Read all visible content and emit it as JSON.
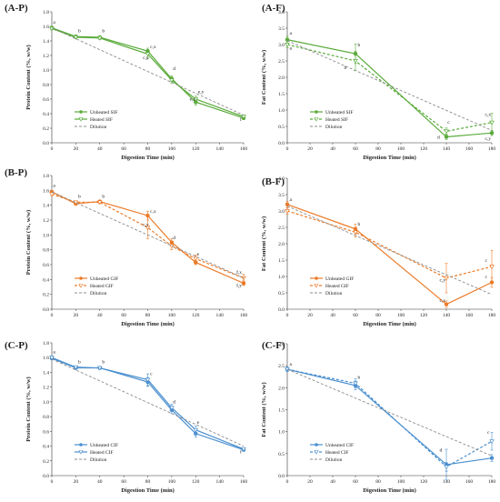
{
  "chart_data": [
    {
      "id": "A-P",
      "panel_label": "(A-P)",
      "type": "line",
      "xlabel": "Digestion Time (min)",
      "ylabel": "Protein Content (%, w/w)",
      "xlim": [
        0,
        160
      ],
      "ylim": [
        0,
        1.8
      ],
      "xticks": [
        0,
        20,
        40,
        60,
        80,
        100,
        120,
        140,
        160
      ],
      "yticks": [
        "0.0",
        "0.2",
        "0.4",
        "0.6",
        "0.8",
        "1.0",
        "1.2",
        "1.4",
        "1.6",
        "1.8"
      ],
      "color": "#5aab3b",
      "legend_position": "bottom-left",
      "grid": false,
      "series": [
        {
          "name": "Unheated SIF",
          "style": "solid",
          "marker": "filled",
          "x": [
            0,
            20,
            40,
            80,
            100,
            120,
            160
          ],
          "y": [
            1.58,
            1.46,
            1.45,
            1.26,
            0.88,
            0.56,
            0.34
          ],
          "err": [
            0.02,
            0.02,
            0.02,
            0.04,
            0.04,
            0.04,
            0.02
          ]
        },
        {
          "name": "Heated SIF",
          "style": "solid",
          "marker": "open",
          "x": [
            0,
            20,
            40,
            80,
            100,
            120,
            160
          ],
          "y": [
            1.57,
            1.45,
            1.44,
            1.22,
            0.86,
            0.6,
            0.36
          ],
          "err": [
            0.02,
            0.02,
            0.02,
            0.06,
            0.04,
            0.04,
            0.02
          ]
        },
        {
          "name": "Dilution",
          "style": "dashed",
          "marker": "none",
          "x": [
            0,
            160
          ],
          "y": [
            1.58,
            0.38
          ],
          "err": []
        }
      ],
      "annotations": [
        {
          "text": "a",
          "x": 1,
          "y": 1.64
        },
        {
          "text": "b",
          "x": 22,
          "y": 1.52
        },
        {
          "text": "b",
          "x": 42,
          "y": 1.52
        },
        {
          "text": "c,x",
          "x": 82,
          "y": 1.3
        },
        {
          "text": "c,y",
          "x": 76,
          "y": 1.15
        },
        {
          "text": "d",
          "x": 101,
          "y": 1.0
        },
        {
          "text": "e,y",
          "x": 122,
          "y": 0.68
        },
        {
          "text": "e,x",
          "x": 115,
          "y": 0.58
        },
        {
          "text": "f",
          "x": 157,
          "y": 0.3
        }
      ]
    },
    {
      "id": "A-F",
      "panel_label": "(A-F)",
      "type": "line",
      "xlabel": "Digestion Time (min)",
      "ylabel": "Fat Content (%, w/w)",
      "xlim": [
        0,
        180
      ],
      "ylim": [
        0,
        4.0
      ],
      "xticks": [
        0,
        20,
        40,
        60,
        80,
        100,
        120,
        140,
        160,
        180
      ],
      "yticks": [
        "0.0",
        "0.5",
        "1.0",
        "1.5",
        "2.0",
        "2.5",
        "3.0",
        "3.5",
        "4.0"
      ],
      "color": "#5aab3b",
      "legend_position": "bottom-left",
      "grid": false,
      "series": [
        {
          "name": "Unheated SIF",
          "style": "solid",
          "marker": "filled",
          "x": [
            0,
            60,
            140,
            180
          ],
          "y": [
            3.15,
            2.72,
            0.18,
            0.3
          ],
          "err": [
            0.1,
            0.3,
            0.08,
            0.08
          ]
        },
        {
          "name": "Heated SIF",
          "style": "dashed",
          "marker": "open",
          "x": [
            0,
            60,
            140,
            180
          ],
          "y": [
            3.0,
            2.5,
            0.35,
            0.62
          ],
          "err": [
            0.1,
            0.3,
            0.1,
            0.28
          ]
        },
        {
          "name": "Dilution",
          "style": "dashed",
          "marker": "none",
          "x": [
            0,
            180
          ],
          "y": [
            3.12,
            0.38
          ],
          "err": []
        }
      ],
      "annotations": [
        {
          "text": "a",
          "x": 2,
          "y": 3.3
        },
        {
          "text": "a",
          "x": 2,
          "y": 2.85
        },
        {
          "text": "b",
          "x": 62,
          "y": 2.95
        },
        {
          "text": "b",
          "x": 50,
          "y": 2.25
        },
        {
          "text": "c",
          "x": 141,
          "y": 0.58
        },
        {
          "text": "d",
          "x": 132,
          "y": 0.12
        },
        {
          "text": "c,x",
          "x": 174,
          "y": 0.82
        },
        {
          "text": "c,y",
          "x": 174,
          "y": 0.08
        }
      ]
    },
    {
      "id": "B-P",
      "panel_label": "(B-P)",
      "type": "line",
      "xlabel": "Digestion Time (min)",
      "ylabel": "Protein Content (%, w/w)",
      "xlim": [
        0,
        160
      ],
      "ylim": [
        0,
        1.8
      ],
      "xticks": [
        0,
        20,
        40,
        60,
        80,
        100,
        120,
        140,
        160
      ],
      "yticks": [
        "0.0",
        "0.2",
        "0.4",
        "0.6",
        "0.8",
        "1.0",
        "1.2",
        "1.4",
        "1.6",
        "1.8"
      ],
      "color": "#ec7b29",
      "legend_position": "bottom-left",
      "grid": false,
      "series": [
        {
          "name": "Unheated GIF",
          "style": "solid",
          "marker": "filled",
          "x": [
            0,
            20,
            40,
            80,
            100,
            120,
            160
          ],
          "y": [
            1.58,
            1.42,
            1.45,
            1.26,
            0.9,
            0.63,
            0.35
          ],
          "err": [
            0.02,
            0.02,
            0.02,
            0.06,
            0.05,
            0.03,
            0.03
          ]
        },
        {
          "name": "Heated GIF",
          "style": "dashed",
          "marker": "open",
          "x": [
            0,
            20,
            40,
            80,
            100,
            120,
            160
          ],
          "y": [
            1.55,
            1.44,
            1.44,
            1.1,
            0.85,
            0.68,
            0.42
          ],
          "err": [
            0.02,
            0.02,
            0.02,
            0.15,
            0.05,
            0.05,
            0.05
          ]
        },
        {
          "name": "Dilution",
          "style": "dashed",
          "marker": "none",
          "x": [
            0,
            160
          ],
          "y": [
            1.58,
            0.42
          ],
          "err": []
        }
      ],
      "annotations": [
        {
          "text": "a",
          "x": 1,
          "y": 1.65
        },
        {
          "text": "b",
          "x": 22,
          "y": 1.5
        },
        {
          "text": "b",
          "x": 42,
          "y": 1.5
        },
        {
          "text": "c,x",
          "x": 82,
          "y": 1.3
        },
        {
          "text": "c,y",
          "x": 76,
          "y": 1.12
        },
        {
          "text": "d",
          "x": 101,
          "y": 0.94
        },
        {
          "text": "e",
          "x": 121,
          "y": 0.72
        },
        {
          "text": "f,x",
          "x": 154,
          "y": 0.48
        },
        {
          "text": "f,y",
          "x": 154,
          "y": 0.3
        }
      ]
    },
    {
      "id": "B-F",
      "panel_label": "(B-F)",
      "type": "line",
      "xlabel": "Digestion Time (min)",
      "ylabel": "Fat Content (%, w/w)",
      "xlim": [
        0,
        180
      ],
      "ylim": [
        0,
        4.0
      ],
      "xticks": [
        0,
        20,
        40,
        60,
        80,
        100,
        120,
        140,
        160,
        180
      ],
      "yticks": [
        "0.0",
        "0.5",
        "1.0",
        "1.5",
        "2.0",
        "2.5",
        "3.0",
        "3.5",
        "4.0"
      ],
      "color": "#ec7b29",
      "legend_position": "bottom-left",
      "grid": false,
      "series": [
        {
          "name": "Unheated GIF",
          "style": "solid",
          "marker": "filled",
          "x": [
            0,
            60,
            140,
            180
          ],
          "y": [
            3.2,
            2.45,
            0.15,
            0.82
          ],
          "err": [
            0.1,
            0.15,
            0.1,
            0.15
          ]
        },
        {
          "name": "Heated GIF",
          "style": "dashed",
          "marker": "open",
          "x": [
            0,
            60,
            140,
            180
          ],
          "y": [
            3.0,
            2.35,
            0.95,
            1.3
          ],
          "err": [
            0.1,
            0.15,
            0.45,
            0.5
          ]
        },
        {
          "name": "Dilution",
          "style": "dashed",
          "marker": "none",
          "x": [
            0,
            180
          ],
          "y": [
            3.15,
            0.45
          ],
          "err": []
        }
      ],
      "annotations": [
        {
          "text": "a",
          "x": 2,
          "y": 3.3
        },
        {
          "text": "b",
          "x": 62,
          "y": 2.55
        },
        {
          "text": "c,y",
          "x": 134,
          "y": 0.85
        },
        {
          "text": "c,x",
          "x": 134,
          "y": 0.22
        },
        {
          "text": "c",
          "x": 174,
          "y": 1.45
        },
        {
          "text": "c",
          "x": 174,
          "y": 0.95
        }
      ]
    },
    {
      "id": "C-P",
      "panel_label": "(C-P)",
      "type": "line",
      "xlabel": "Digestion Time (min)",
      "ylabel": "Protein Content (%, w/w)",
      "xlim": [
        0,
        160
      ],
      "ylim": [
        0,
        1.8
      ],
      "xticks": [
        0,
        20,
        40,
        60,
        80,
        100,
        120,
        140,
        160
      ],
      "yticks": [
        "0.0",
        "0.2",
        "0.4",
        "0.6",
        "0.8",
        "1.0",
        "1.2",
        "1.4",
        "1.6",
        "1.8"
      ],
      "color": "#4b90cf",
      "legend_position": "bottom-left",
      "grid": false,
      "series": [
        {
          "name": "Unheated CIF",
          "style": "solid",
          "marker": "filled",
          "x": [
            0,
            20,
            40,
            80,
            100,
            120,
            160
          ],
          "y": [
            1.59,
            1.46,
            1.46,
            1.27,
            0.89,
            0.57,
            0.35
          ],
          "err": [
            0.02,
            0.02,
            0.02,
            0.06,
            0.05,
            0.05,
            0.02
          ]
        },
        {
          "name": "Heated CIF",
          "style": "solid",
          "marker": "open",
          "x": [
            0,
            20,
            40,
            80,
            100,
            120,
            160
          ],
          "y": [
            1.6,
            1.47,
            1.46,
            1.3,
            0.92,
            0.62,
            0.36
          ],
          "err": [
            0.02,
            0.02,
            0.02,
            0.08,
            0.05,
            0.05,
            0.02
          ]
        },
        {
          "name": "Dilution",
          "style": "dashed",
          "marker": "none",
          "x": [
            0,
            160
          ],
          "y": [
            1.58,
            0.4
          ],
          "err": []
        }
      ],
      "annotations": [
        {
          "text": "a",
          "x": 1,
          "y": 1.66
        },
        {
          "text": "b",
          "x": 22,
          "y": 1.52
        },
        {
          "text": "b",
          "x": 42,
          "y": 1.52
        },
        {
          "text": "c",
          "x": 82,
          "y": 1.36
        },
        {
          "text": "d",
          "x": 101,
          "y": 0.98
        },
        {
          "text": "e",
          "x": 121,
          "y": 0.7
        },
        {
          "text": "f",
          "x": 157,
          "y": 0.3
        }
      ]
    },
    {
      "id": "C-F",
      "panel_label": "(C-F)",
      "type": "line",
      "xlabel": "Digestion Time (min)",
      "ylabel": "Fat Content (%, w/w)",
      "xlim": [
        0,
        180
      ],
      "ylim": [
        0,
        3.0
      ],
      "xticks": [
        0,
        20,
        40,
        60,
        80,
        100,
        120,
        140,
        160,
        180
      ],
      "yticks": [
        "0.0",
        "0.5",
        "1.0",
        "1.5",
        "2.0",
        "2.5",
        "3.0"
      ],
      "color": "#4b90cf",
      "legend_position": "bottom-left",
      "grid": false,
      "series": [
        {
          "name": "Unheated CIF",
          "style": "solid",
          "marker": "filled",
          "x": [
            0,
            60,
            140,
            180
          ],
          "y": [
            2.42,
            2.05,
            0.25,
            0.4
          ],
          "err": [
            0.05,
            0.1,
            0.35,
            0.08
          ]
        },
        {
          "name": "Heated CIF",
          "style": "dashed",
          "marker": "open",
          "x": [
            0,
            60,
            140,
            180
          ],
          "y": [
            2.42,
            2.1,
            0.2,
            0.78
          ],
          "err": [
            0.05,
            0.1,
            0.1,
            0.2
          ]
        },
        {
          "name": "Dilution",
          "style": "dashed",
          "marker": "none",
          "x": [
            0,
            180
          ],
          "y": [
            2.42,
            0.45
          ],
          "err": []
        }
      ],
      "annotations": [
        {
          "text": "a",
          "x": 2,
          "y": 2.5
        },
        {
          "text": "b",
          "x": 62,
          "y": 2.2
        },
        {
          "text": "d",
          "x": 134,
          "y": 0.55
        },
        {
          "text": "c",
          "x": 176,
          "y": 0.95
        }
      ]
    }
  ]
}
